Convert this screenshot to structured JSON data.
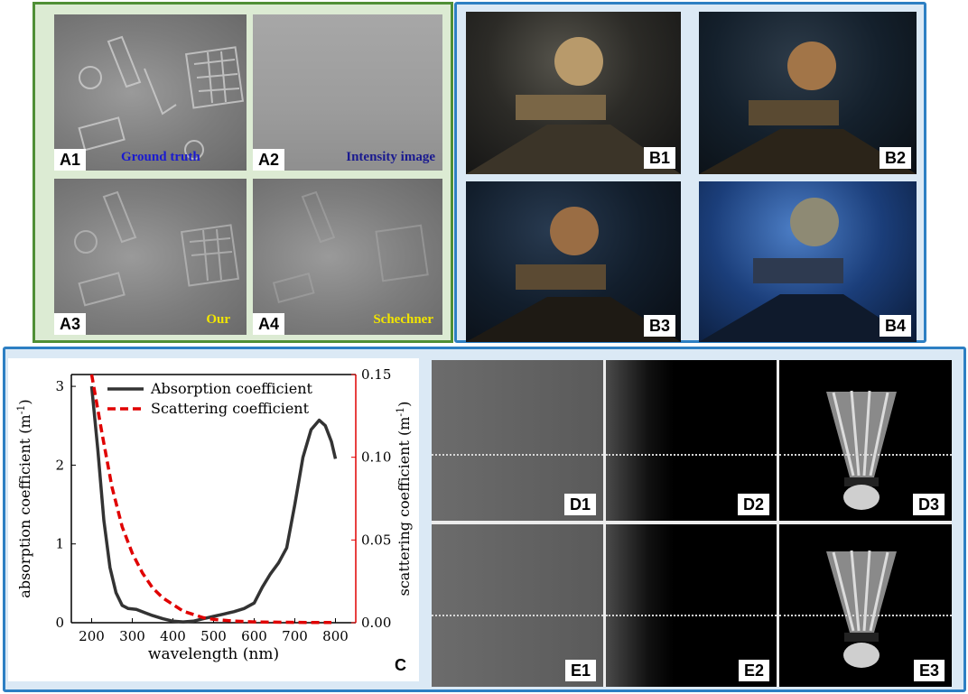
{
  "panel_a": {
    "tiles": [
      {
        "label": "A1",
        "caption": "Ground truth",
        "caption_color": "#1a1acf"
      },
      {
        "label": "A2",
        "caption": "Intensity image",
        "caption_color": "#1a1a8f"
      },
      {
        "label": "A3",
        "caption": "Our",
        "caption_color": "#f2e600"
      },
      {
        "label": "A4",
        "caption": "Schechner",
        "caption_color": "#f2e600"
      }
    ]
  },
  "panel_b": {
    "tiles": [
      {
        "label": "B1"
      },
      {
        "label": "B2"
      },
      {
        "label": "B3"
      },
      {
        "label": "B4"
      }
    ]
  },
  "panel_c": {
    "label": "C"
  },
  "panel_de": {
    "tiles": [
      {
        "label": "D1"
      },
      {
        "label": "D2"
      },
      {
        "label": "D3"
      },
      {
        "label": "E1"
      },
      {
        "label": "E2"
      },
      {
        "label": "E3"
      }
    ]
  },
  "chart_data": {
    "type": "line",
    "xlabel": "wavelength (nm)",
    "ylabel": "absorption coefficient (m",
    "ylabel_sup": "-1",
    "ylabel_end": ")",
    "y2label": "scattering coefficient (m",
    "y2label_sup": "-1",
    "y2label_end": ")",
    "xlim": [
      150,
      850
    ],
    "ylim": [
      0,
      3.15
    ],
    "y2lim": [
      0,
      0.15
    ],
    "x_ticks": [
      "200",
      "300",
      "400",
      "500",
      "600",
      "700",
      "800"
    ],
    "x_tick_values": [
      200,
      300,
      400,
      500,
      600,
      700,
      800
    ],
    "y_ticks": [
      "0",
      "1",
      "2",
      "3"
    ],
    "y_tick_values": [
      0,
      1,
      2,
      3
    ],
    "y2_ticks": [
      "0.00",
      "0.05",
      "0.10",
      "0.15"
    ],
    "y2_tick_values": [
      0,
      0.05,
      0.1,
      0.15
    ],
    "grid": false,
    "legend_position": "top-right",
    "series": [
      {
        "name": "Absorption coefficient",
        "axis": "left",
        "color": "#333333",
        "dash": "solid",
        "x": [
          200,
          215,
          230,
          245,
          260,
          275,
          290,
          310,
          330,
          350,
          375,
          400,
          425,
          450,
          475,
          500,
          525,
          550,
          575,
          600,
          620,
          640,
          660,
          680,
          700,
          720,
          740,
          760,
          775,
          790,
          800
        ],
        "y": [
          3.0,
          2.2,
          1.3,
          0.7,
          0.38,
          0.22,
          0.18,
          0.17,
          0.13,
          0.09,
          0.05,
          0.02,
          0.01,
          0.02,
          0.05,
          0.08,
          0.11,
          0.14,
          0.18,
          0.25,
          0.45,
          0.62,
          0.76,
          0.95,
          1.5,
          2.1,
          2.45,
          2.57,
          2.5,
          2.3,
          2.08
        ]
      },
      {
        "name": "Scattering coefficient",
        "axis": "right",
        "color": "#e00000",
        "dash": "dashed",
        "x": [
          200,
          225,
          250,
          275,
          300,
          325,
          350,
          375,
          400,
          425,
          450,
          475,
          500,
          550,
          600,
          650,
          700,
          750,
          790
        ],
        "y": [
          0.155,
          0.115,
          0.082,
          0.058,
          0.042,
          0.03,
          0.021,
          0.015,
          0.011,
          0.007,
          0.005,
          0.003,
          0.002,
          0.001,
          0.0005,
          0.0003,
          0.0002,
          0.0001,
          0.0001
        ]
      }
    ]
  }
}
